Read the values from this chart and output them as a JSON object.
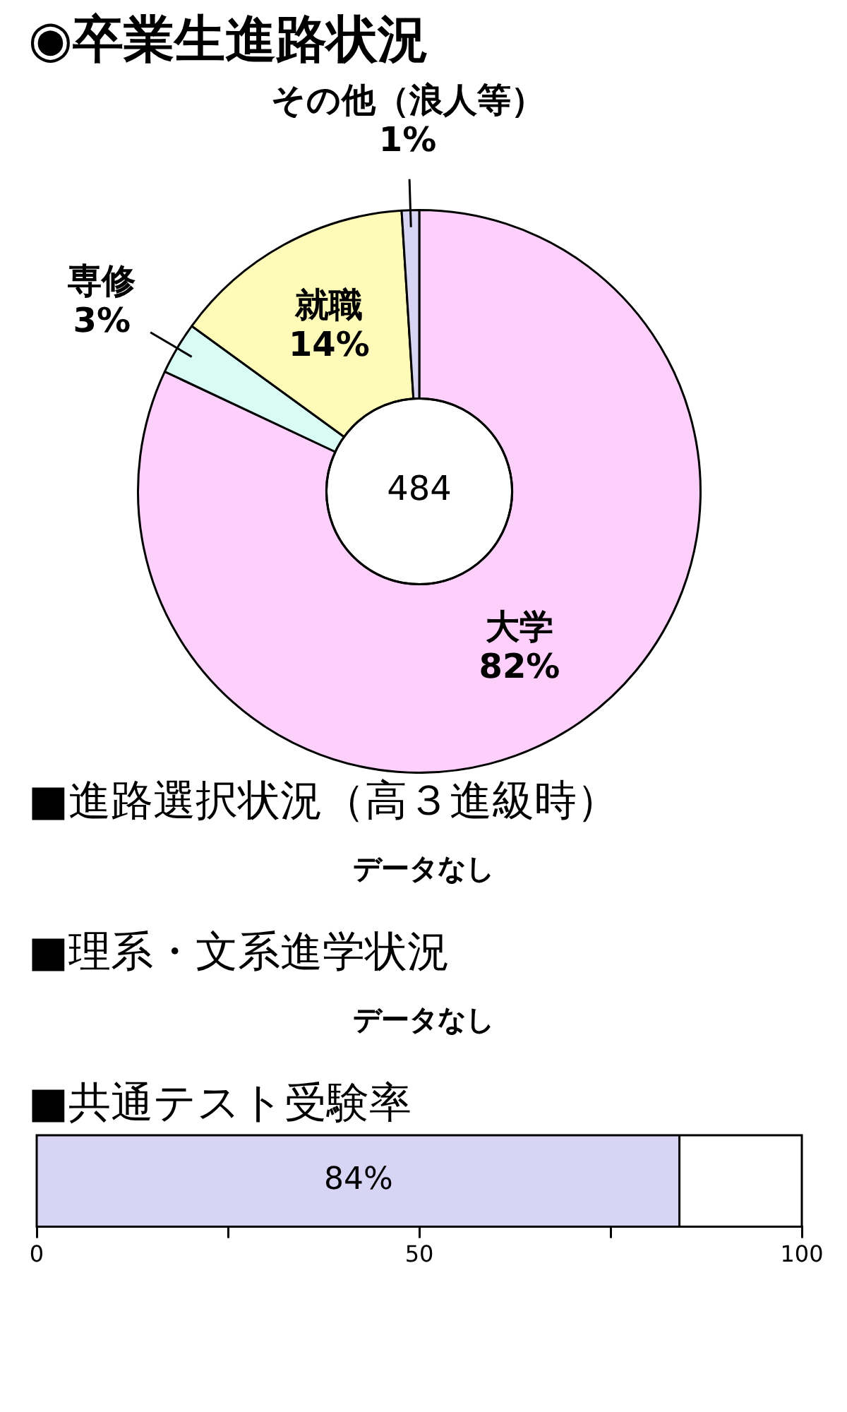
{
  "chart_data": [
    {
      "type": "donut",
      "title": "◉卒業生進路状況",
      "categories": [
        "大学",
        "専修",
        "就職",
        "その他（浪人等）"
      ],
      "values": [
        82,
        3,
        14,
        1
      ],
      "colors": [
        "#fdd0fb",
        "#d8fbf4",
        "#fefbb8",
        "#d8d4f4"
      ],
      "value_labels": [
        "82%",
        "3%",
        "14%",
        "1%"
      ],
      "annotations": [
        "484"
      ]
    },
    {
      "type": "other",
      "title": "■進路選択状況（高３進級時）",
      "annotations": [
        "データなし"
      ]
    },
    {
      "type": "other",
      "title": "■理系・文系進学状況",
      "annotations": [
        "データなし"
      ]
    },
    {
      "type": "bar",
      "orientation": "horizontal",
      "title": "■共通テスト受験率",
      "categories": [
        null
      ],
      "values": [
        84
      ],
      "color": "#d8d4f4",
      "value_labels": [
        "84%"
      ],
      "xlim": [
        0,
        100
      ],
      "xticks": [
        0,
        {
          "value": 25,
          "label": null
        },
        50,
        {
          "value": 75,
          "label": null
        },
        100
      ]
    }
  ]
}
